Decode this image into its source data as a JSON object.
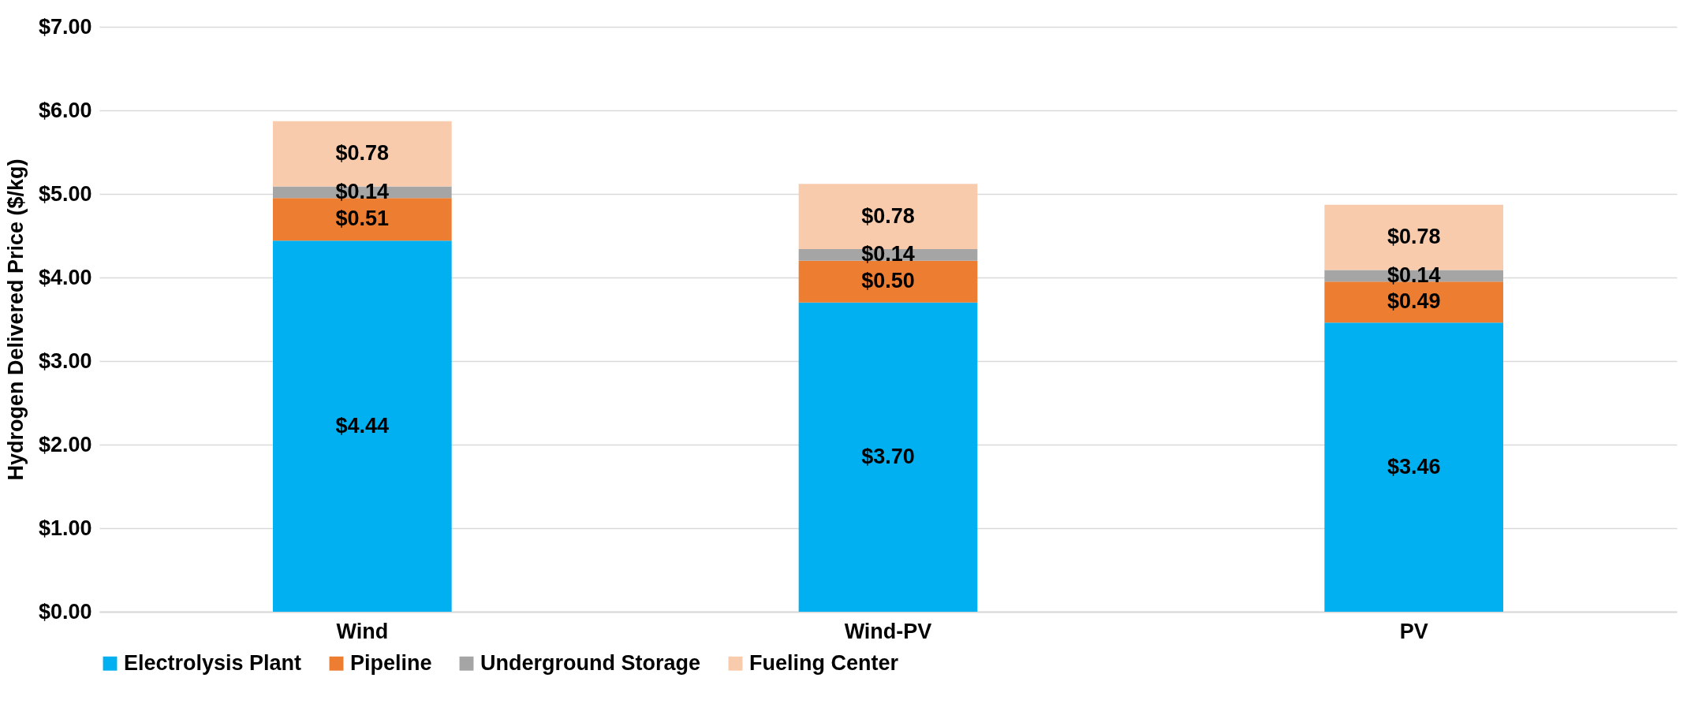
{
  "chart_data": {
    "type": "bar",
    "stacked": true,
    "ylabel": "Hydrogen Delivered Price ($/kg)",
    "categories": [
      "Wind",
      "Wind-PV",
      "PV"
    ],
    "series": [
      {
        "name": "Electrolysis Plant",
        "color": "#00b0f0",
        "values": [
          4.44,
          3.7,
          3.46
        ],
        "value_labels": [
          "$4.44",
          "$3.70",
          "$3.46"
        ]
      },
      {
        "name": "Pipeline",
        "color": "#ed7d31",
        "values": [
          0.51,
          0.5,
          0.49
        ],
        "value_labels": [
          "$0.51",
          "$0.50",
          "$0.49"
        ]
      },
      {
        "name": "Underground Storage",
        "color": "#a5a5a5",
        "values": [
          0.14,
          0.14,
          0.14
        ],
        "value_labels": [
          "$0.14",
          "$0.14",
          "$0.14"
        ]
      },
      {
        "name": "Fueling Center",
        "color": "#f8cbad",
        "values": [
          0.78,
          0.78,
          0.78
        ],
        "value_labels": [
          "$0.78",
          "$0.78",
          "$0.78"
        ]
      }
    ],
    "ylim": [
      0,
      7
    ],
    "yticks": [
      {
        "value": 0,
        "label": "$0.00"
      },
      {
        "value": 1,
        "label": "$1.00"
      },
      {
        "value": 2,
        "label": "$2.00"
      },
      {
        "value": 3,
        "label": "$3.00"
      },
      {
        "value": 4,
        "label": "$4.00"
      },
      {
        "value": 5,
        "label": "$5.00"
      },
      {
        "value": 6,
        "label": "$6.00"
      },
      {
        "value": 7,
        "label": "$7.00"
      }
    ],
    "grid": "y",
    "legend": "bottom"
  }
}
